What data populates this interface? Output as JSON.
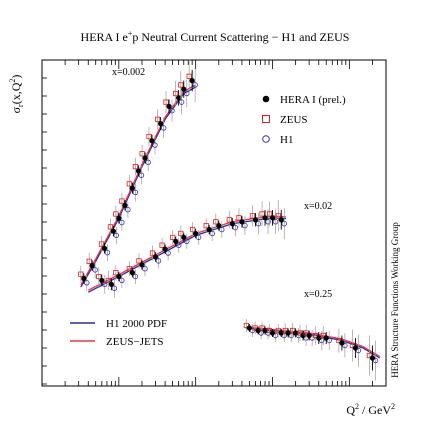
{
  "chart_data": {
    "type": "scatter",
    "title": {
      "pre": "HERA I e",
      "sup": "+",
      "post": "p Neutral Current Scattering − H1 and ZEUS"
    },
    "xlabel": {
      "pre": "Q",
      "sup": "2",
      "post": " / GeV",
      "sup2": "2"
    },
    "ylabel": {
      "pre": "σ",
      "sub": "r",
      "post": "(x,Q",
      "sup": "2",
      "post2": ")"
    },
    "side_note": "HERA Structure Functions Working Group",
    "x_scale": "log",
    "legend_markers": [
      {
        "label": "HERA I (prel.)",
        "marker": "filled-circle",
        "color": "#000000"
      },
      {
        "label": "ZEUS",
        "marker": "open-square",
        "color": "#dd2222"
      },
      {
        "label": "H1",
        "marker": "open-circle",
        "color": "#3333aa"
      }
    ],
    "legend_lines": [
      {
        "label": "H1 2000 PDF",
        "color": "#2a2aa0"
      },
      {
        "label": "ZEUS−JETS",
        "color": "#ee3344"
      }
    ],
    "bin_labels": [
      "x=0.002",
      "x=0.02",
      "x=0.25"
    ],
    "series": [
      {
        "name": "x=0.002",
        "x": [
          3.5,
          4.5,
          6.5,
          8.5,
          10,
          12,
          15,
          18,
          22,
          27,
          35,
          45,
          60,
          70,
          90
        ],
        "y": [
          0.45,
          0.48,
          0.52,
          0.56,
          0.59,
          0.62,
          0.66,
          0.7,
          0.73,
          0.77,
          0.81,
          0.85,
          0.87,
          0.89,
          0.91
        ],
        "err": [
          0.012,
          0.012,
          0.012,
          0.012,
          0.012,
          0.012,
          0.013,
          0.013,
          0.013,
          0.014,
          0.015,
          0.016,
          0.018,
          0.02,
          0.025
        ],
        "zeus_y": [
          0.46,
          0.49,
          0.53,
          0.57,
          0.6,
          0.63,
          0.67,
          0.71,
          0.74,
          0.78,
          0.82,
          0.86,
          0.88,
          0.9,
          0.92
        ],
        "h1_y": [
          0.44,
          0.47,
          0.51,
          0.55,
          0.58,
          0.61,
          0.65,
          0.69,
          0.72,
          0.76,
          0.8,
          0.84,
          0.86,
          0.88,
          0.9
        ],
        "h1_fit": [
          [
            3.2,
            0.43
          ],
          [
            5,
            0.49
          ],
          [
            10,
            0.59
          ],
          [
            20,
            0.71
          ],
          [
            40,
            0.82
          ],
          [
            70,
            0.88
          ],
          [
            100,
            0.895
          ]
        ],
        "zeus_fit": [
          [
            3.2,
            0.435
          ],
          [
            5,
            0.495
          ],
          [
            10,
            0.595
          ],
          [
            20,
            0.715
          ],
          [
            40,
            0.825
          ],
          [
            70,
            0.885
          ],
          [
            100,
            0.9
          ]
        ]
      },
      {
        "name": "x=0.02",
        "x": [
          6,
          8,
          10,
          15,
          20,
          30,
          40,
          55,
          70,
          100,
          150,
          200,
          300,
          400,
          600,
          800,
          1000,
          1300
        ],
        "y": [
          0.42,
          0.41,
          0.43,
          0.44,
          0.46,
          0.48,
          0.5,
          0.52,
          0.53,
          0.54,
          0.55,
          0.56,
          0.565,
          0.57,
          0.575,
          0.58,
          0.58,
          0.575
        ],
        "err": [
          0.015,
          0.015,
          0.012,
          0.012,
          0.012,
          0.012,
          0.012,
          0.012,
          0.012,
          0.012,
          0.012,
          0.013,
          0.014,
          0.015,
          0.017,
          0.02,
          0.02,
          0.025
        ],
        "zeus_y": [
          0.43,
          0.42,
          0.44,
          0.45,
          0.47,
          0.49,
          0.51,
          0.53,
          0.54,
          0.55,
          0.56,
          0.57,
          0.575,
          0.58,
          0.585,
          0.59,
          0.59,
          0.585
        ],
        "h1_y": [
          0.41,
          0.4,
          0.42,
          0.43,
          0.45,
          0.47,
          0.49,
          0.51,
          0.52,
          0.53,
          0.54,
          0.55,
          0.555,
          0.56,
          0.565,
          0.57,
          0.57,
          0.565
        ],
        "h1_fit": [
          [
            4,
            0.39
          ],
          [
            10,
            0.43
          ],
          [
            30,
            0.48
          ],
          [
            100,
            0.535
          ],
          [
            300,
            0.565
          ],
          [
            1000,
            0.58
          ],
          [
            1500,
            0.578
          ]
        ],
        "zeus_fit": [
          [
            4,
            0.395
          ],
          [
            10,
            0.435
          ],
          [
            30,
            0.485
          ],
          [
            100,
            0.54
          ],
          [
            300,
            0.57
          ],
          [
            1000,
            0.585
          ],
          [
            1500,
            0.582
          ]
        ]
      },
      {
        "name": "x=0.25",
        "x": [
          500,
          650,
          800,
          1000,
          1300,
          1600,
          2000,
          2500,
          3000,
          4000,
          5000,
          8000,
          12000,
          20000
        ],
        "y": [
          0.36,
          0.355,
          0.355,
          0.35,
          0.35,
          0.35,
          0.35,
          0.345,
          0.345,
          0.34,
          0.34,
          0.33,
          0.32,
          0.3
        ],
        "err": [
          0.008,
          0.008,
          0.008,
          0.008,
          0.008,
          0.009,
          0.009,
          0.01,
          0.01,
          0.012,
          0.012,
          0.015,
          0.02,
          0.025
        ],
        "zeus_y": [
          0.365,
          0.36,
          0.36,
          0.355,
          0.355,
          0.355,
          0.355,
          0.35,
          0.35,
          0.345,
          0.345,
          0.335,
          0.325,
          0.305
        ],
        "h1_y": [
          0.355,
          0.35,
          0.35,
          0.345,
          0.345,
          0.345,
          0.345,
          0.34,
          0.34,
          0.335,
          0.335,
          0.325,
          0.315,
          0.295
        ],
        "h1_fit": [
          [
            450,
            0.36
          ],
          [
            1000,
            0.355
          ],
          [
            3000,
            0.348
          ],
          [
            8000,
            0.335
          ],
          [
            15000,
            0.32
          ],
          [
            25000,
            0.3
          ]
        ],
        "zeus_fit": [
          [
            450,
            0.362
          ],
          [
            1000,
            0.357
          ],
          [
            3000,
            0.35
          ],
          [
            8000,
            0.338
          ],
          [
            15000,
            0.323
          ],
          [
            25000,
            0.303
          ]
        ]
      }
    ]
  }
}
